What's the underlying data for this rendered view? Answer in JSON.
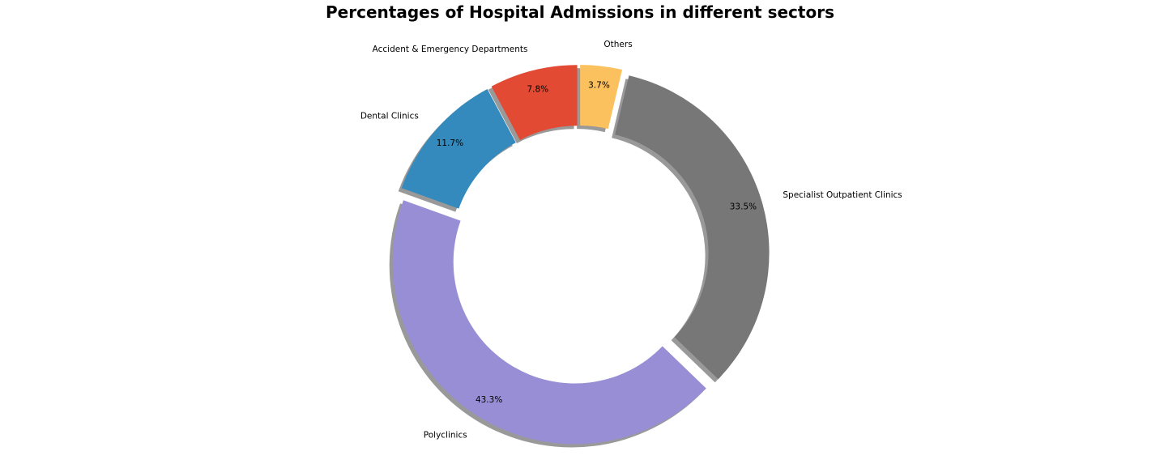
{
  "chart_data": {
    "type": "pie",
    "donut": true,
    "title": "Percentages of Hospital Admissions in different sectors",
    "shadow": true,
    "start": "top, counter-clockwise",
    "slices": [
      {
        "label": "Accident & Emergency Departments",
        "value": 7.8,
        "pct_label": "7.8%",
        "color": "#E24A33",
        "exploded": true
      },
      {
        "label": "Dental Clinics",
        "value": 11.7,
        "pct_label": "11.7%",
        "color": "#348ABD",
        "exploded": true
      },
      {
        "label": "Polyclinics",
        "value": 43.3,
        "pct_label": "43.3%",
        "color": "#988ED5",
        "exploded": true
      },
      {
        "label": "Specialist Outpatient Clinics",
        "value": 33.5,
        "pct_label": "33.5%",
        "color": "#777777",
        "exploded": true
      },
      {
        "label": "Others",
        "value": 3.7,
        "pct_label": "3.7%",
        "color": "#FBC15E",
        "exploded": true
      }
    ]
  }
}
